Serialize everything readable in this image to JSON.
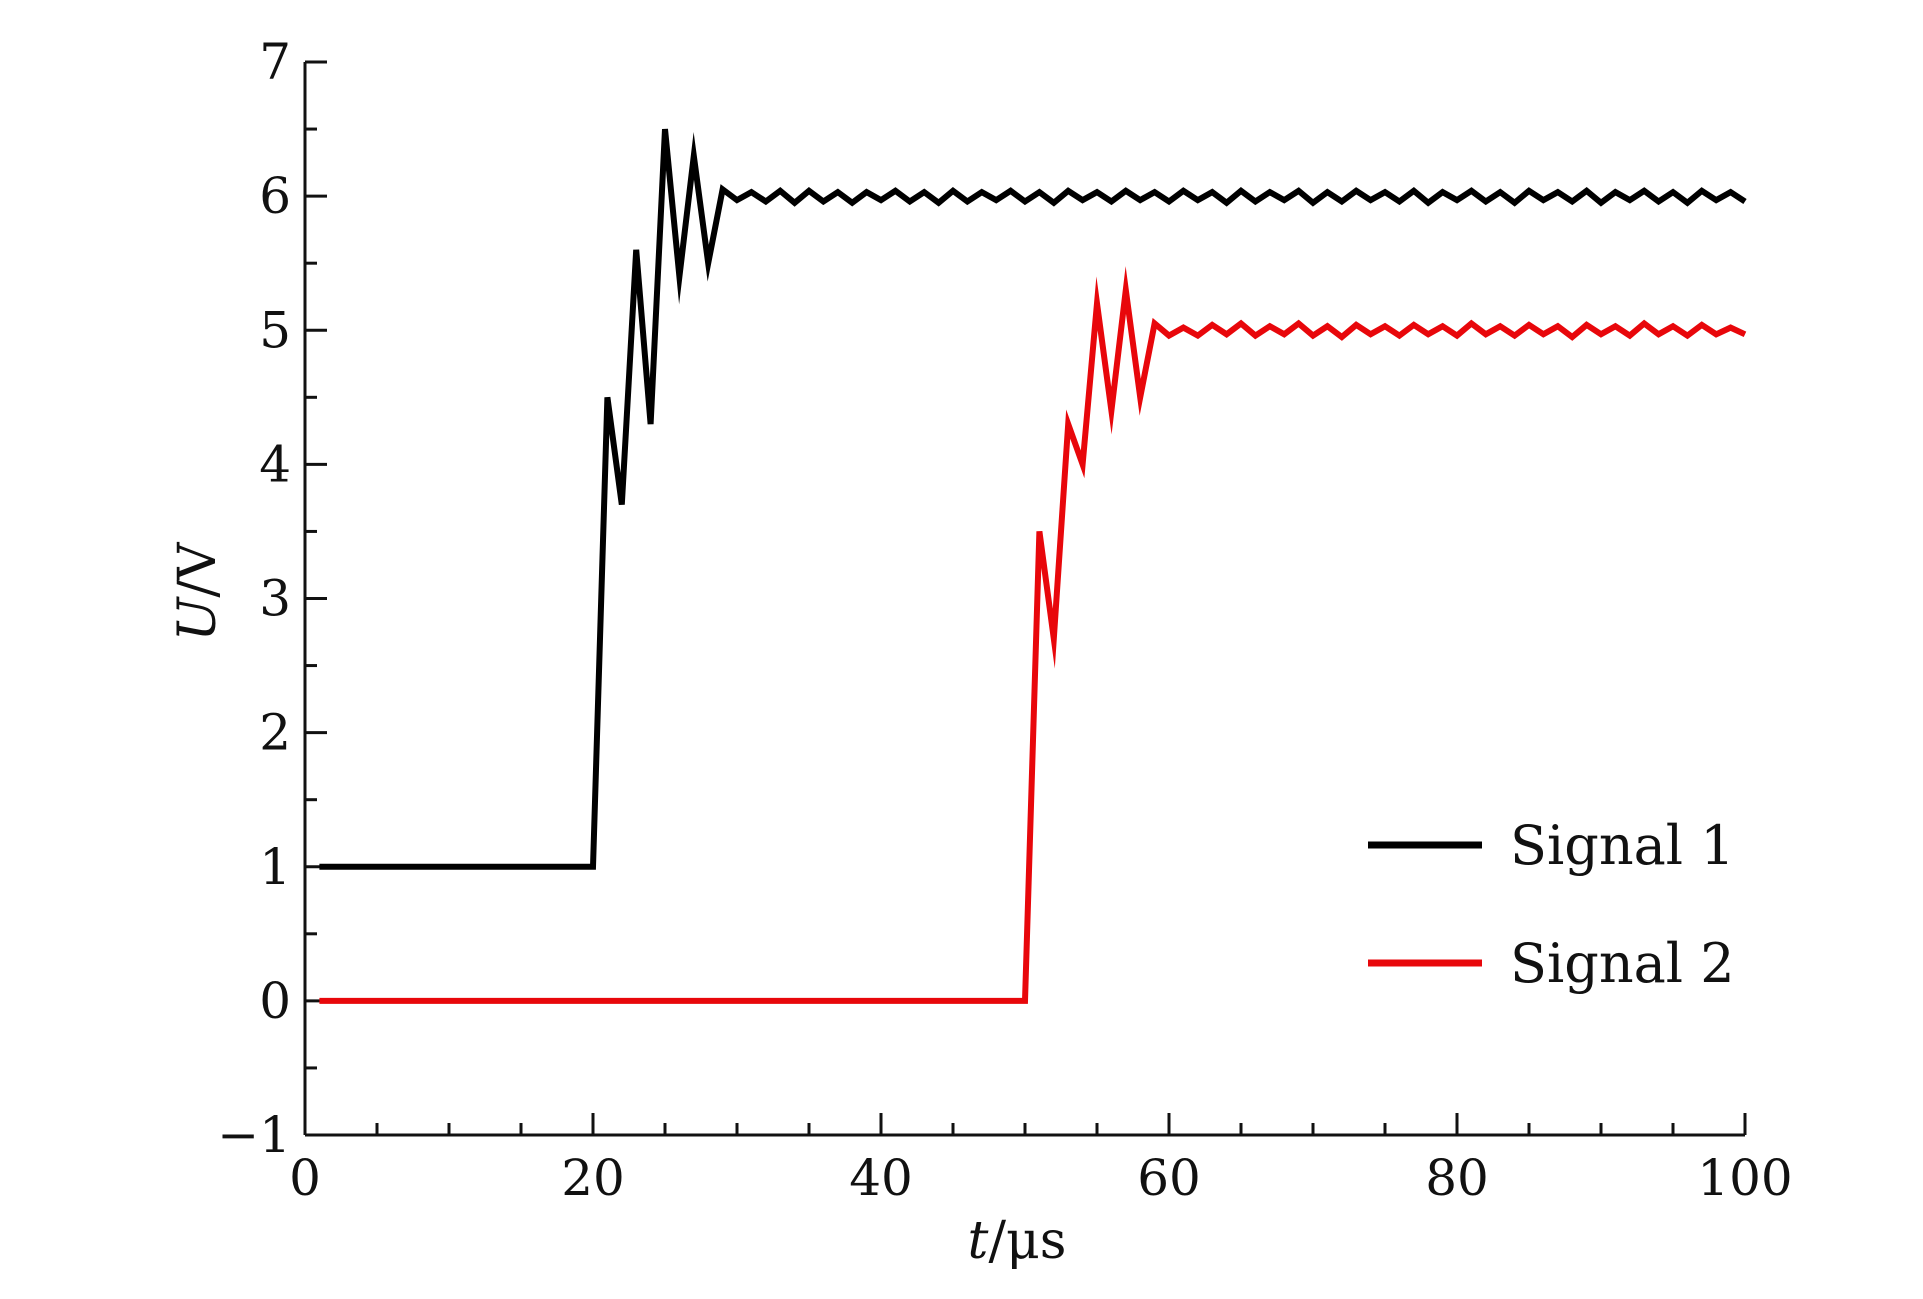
{
  "chart_data": {
    "type": "line",
    "title": "",
    "xlabel": {
      "var": "t",
      "unit": "/μs"
    },
    "ylabel": {
      "var": "U",
      "unit": "/V"
    },
    "xlim": [
      0,
      100
    ],
    "ylim": [
      -1,
      7
    ],
    "x_ticks": [
      0,
      20,
      40,
      60,
      80,
      100
    ],
    "x_tick_labels": [
      "0",
      "20",
      "40",
      "60",
      "80",
      "100"
    ],
    "y_ticks": [
      -1,
      0,
      1,
      2,
      3,
      4,
      5,
      6,
      7
    ],
    "y_tick_labels": [
      "−1",
      "0",
      "1",
      "2",
      "3",
      "4",
      "5",
      "6",
      "7"
    ],
    "grid": false,
    "legend": "right",
    "series": [
      {
        "name": "Signal 1",
        "color": "#000000",
        "x": [
          1,
          20,
          21,
          22,
          23,
          24,
          25,
          26,
          27,
          28,
          29,
          30,
          31,
          32,
          33,
          34,
          35,
          36,
          37,
          38,
          39,
          40,
          41,
          42,
          43,
          44,
          45,
          46,
          47,
          48,
          49,
          50,
          51,
          52,
          53,
          54,
          55,
          56,
          57,
          58,
          59,
          60,
          61,
          62,
          63,
          64,
          65,
          66,
          67,
          68,
          69,
          70,
          71,
          72,
          73,
          74,
          75,
          76,
          77,
          78,
          79,
          80,
          81,
          82,
          83,
          84,
          85,
          86,
          87,
          88,
          89,
          90,
          91,
          92,
          93,
          94,
          95,
          96,
          97,
          98,
          99,
          100
        ],
        "y": [
          1,
          1,
          4.5,
          3.7,
          5.6,
          4.3,
          6.5,
          5.4,
          6.3,
          5.5,
          6.05,
          5.97,
          6.03,
          5.96,
          6.04,
          5.95,
          6.04,
          5.96,
          6.03,
          5.95,
          6.03,
          5.97,
          6.04,
          5.96,
          6.03,
          5.95,
          6.04,
          5.96,
          6.03,
          5.97,
          6.04,
          5.96,
          6.03,
          5.95,
          6.04,
          5.97,
          6.03,
          5.96,
          6.04,
          5.97,
          6.03,
          5.96,
          6.04,
          5.97,
          6.03,
          5.95,
          6.04,
          5.96,
          6.03,
          5.97,
          6.04,
          5.95,
          6.03,
          5.96,
          6.04,
          5.97,
          6.03,
          5.96,
          6.04,
          5.95,
          6.03,
          5.97,
          6.04,
          5.96,
          6.03,
          5.95,
          6.04,
          5.97,
          6.03,
          5.96,
          6.04,
          5.95,
          6.03,
          5.97,
          6.04,
          5.96,
          6.03,
          5.95,
          6.04,
          5.97,
          6.03,
          5.96
        ]
      },
      {
        "name": "Signal 2",
        "color": "#e8070b",
        "x": [
          1,
          50,
          51,
          52,
          53,
          54,
          55,
          56,
          57,
          58,
          59,
          60,
          61,
          62,
          63,
          64,
          65,
          66,
          67,
          68,
          69,
          70,
          71,
          72,
          73,
          74,
          75,
          76,
          77,
          78,
          79,
          80,
          81,
          82,
          83,
          84,
          85,
          86,
          87,
          88,
          89,
          90,
          91,
          92,
          93,
          94,
          95,
          96,
          97,
          98,
          99,
          100
        ],
        "y": [
          0,
          0,
          3.5,
          2.7,
          4.3,
          4.0,
          5.2,
          4.4,
          5.3,
          4.5,
          5.05,
          4.96,
          5.02,
          4.96,
          5.04,
          4.97,
          5.05,
          4.96,
          5.03,
          4.97,
          5.05,
          4.96,
          5.03,
          4.95,
          5.04,
          4.97,
          5.03,
          4.96,
          5.04,
          4.97,
          5.03,
          4.96,
          5.05,
          4.97,
          5.03,
          4.96,
          5.04,
          4.97,
          5.03,
          4.95,
          5.04,
          4.97,
          5.03,
          4.96,
          5.05,
          4.97,
          5.03,
          4.96,
          5.04,
          4.97,
          5.02,
          4.97
        ]
      }
    ]
  }
}
